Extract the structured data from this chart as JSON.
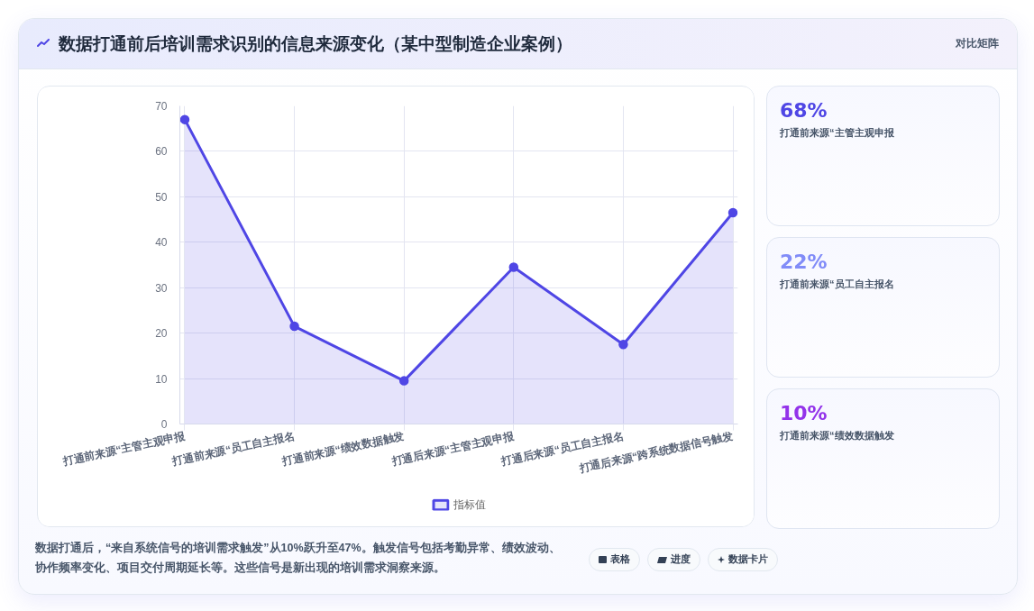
{
  "chart_data": [
    {
      "type": "area",
      "title": "数据打通前后培训需求识别的信息来源变化（某中型制造企业案例）",
      "categories": [
        "打通前来源“主管主观申报",
        "打通前来源“员工自主报名",
        "打通前来源“绩效数据触发",
        "打通后来源“主管主观申报",
        "打通后来源“员工自主报名",
        "打通后来源“跨系统数据信号触发"
      ],
      "series": [
        {
          "name": "指标值",
          "color": "#4f46e5",
          "values": [
            67,
            21.5,
            9.5,
            34.5,
            17.5,
            46.5
          ]
        }
      ],
      "ylim": [
        0,
        70
      ],
      "yticks": [
        0,
        10,
        20,
        30,
        40,
        50,
        60,
        70
      ],
      "grid": true,
      "legend": "bottom",
      "marker": "circle",
      "annotations": [
        "对比矩阵",
        "数据打通后，“来自系统信号的培训需求触发”从10%跃升至47%。触发信号包括考勤异常、绩效波动、协作频率变化、项目交付周期延长等。这些信号是新出现的培训需求洞察来源。",
        "表格",
        "进度",
        "数据卡片"
      ]
    },
    {
      "type": "other",
      "annotations": [
        "68%",
        "打通前来源“主管主观申报",
        "22%",
        "打通前来源“员工自主报名",
        "10%",
        "打通前来源“绩效数据触发"
      ],
      "colors": [
        "#4f46e5",
        "#818cf8",
        "#9333ea"
      ]
    }
  ]
}
